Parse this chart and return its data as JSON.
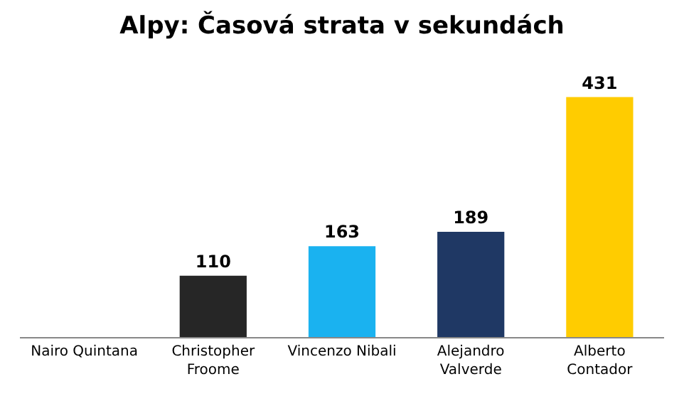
{
  "chart_data": {
    "type": "bar",
    "title": "Alpy: Časová strata v sekundách",
    "categories": [
      "Nairo Quintana",
      "Christopher\nFroome",
      "Vincenzo Nibali",
      "Alejandro\nValverde",
      "Alberto\nContador"
    ],
    "values": [
      0,
      110,
      163,
      189,
      431
    ],
    "colors": [
      "#262626",
      "#262626",
      "#1ab2f0",
      "#1f3864",
      "#ffcc00"
    ],
    "value_labels": [
      null,
      "110",
      "163",
      "189",
      "431"
    ]
  }
}
